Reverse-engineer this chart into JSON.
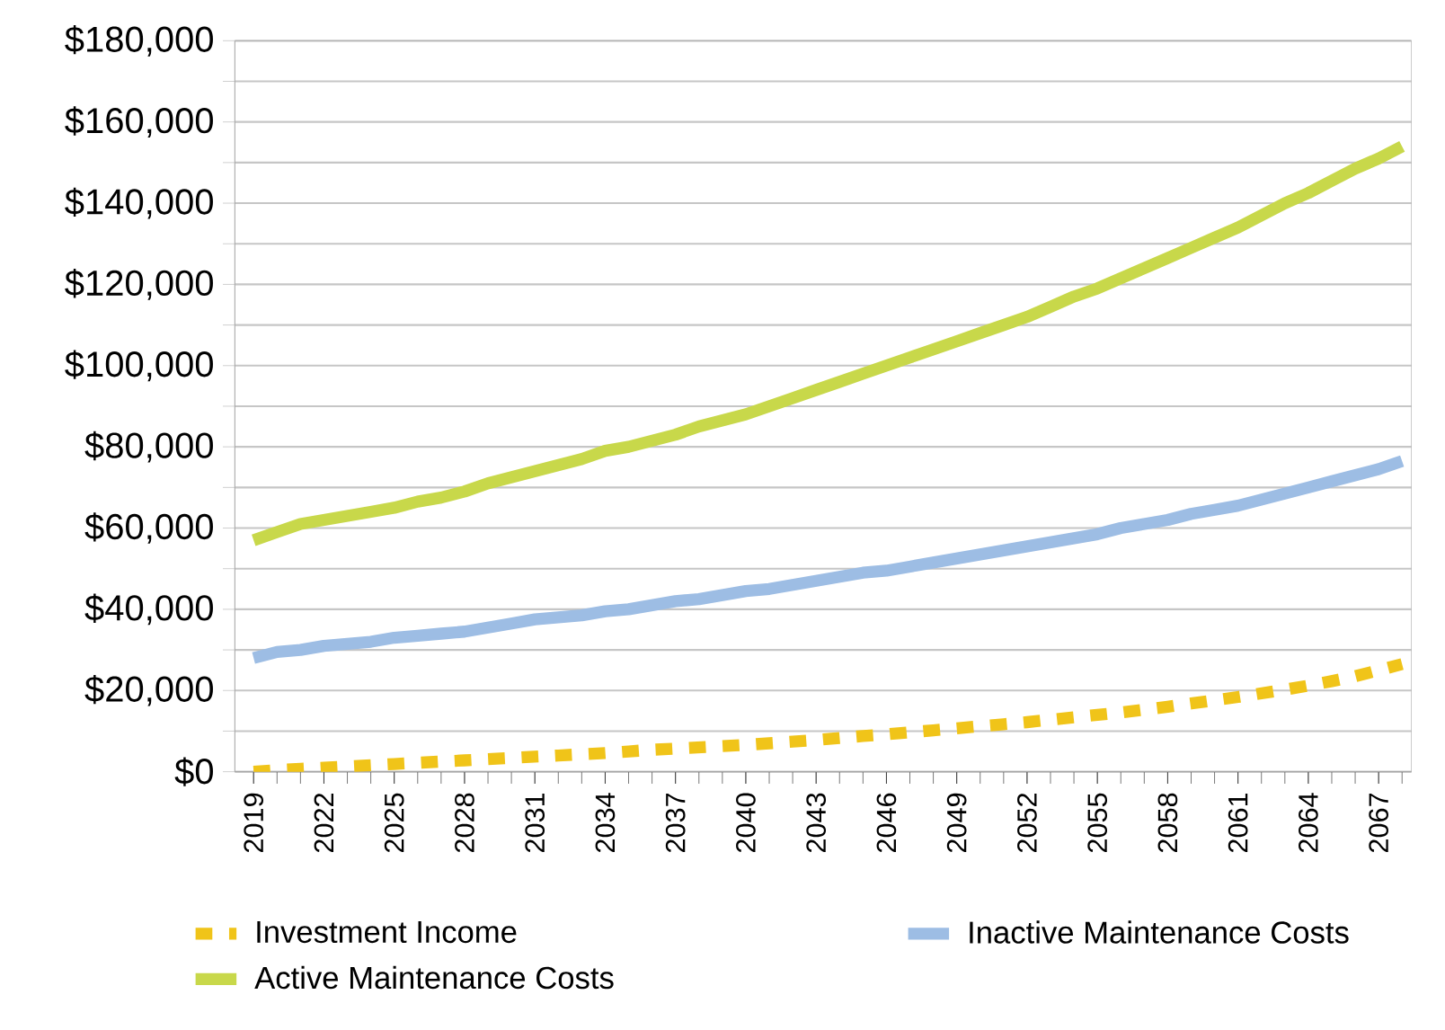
{
  "chart_data": {
    "type": "line",
    "categories": [
      "2019",
      null,
      null,
      "2022",
      null,
      null,
      "2025",
      null,
      null,
      "2028",
      null,
      null,
      "2031",
      null,
      null,
      "2034",
      null,
      null,
      "2037",
      null,
      null,
      "2040",
      null,
      null,
      "2043",
      null,
      null,
      "2046",
      null,
      null,
      "2049",
      null,
      null,
      "2052",
      null,
      null,
      "2055",
      null,
      null,
      "2058",
      null,
      null,
      "2061",
      null,
      null,
      "2064",
      null,
      null,
      "2067",
      null
    ],
    "series": [
      {
        "name": "Investment Income",
        "color": "#f0c419",
        "line_style": "dashed",
        "values": [
          0,
          400,
          700,
          1000,
          1300,
          1600,
          1900,
          2200,
          2500,
          2800,
          3100,
          3400,
          3700,
          4000,
          4300,
          4600,
          5000,
          5400,
          5700,
          6000,
          6300,
          6600,
          7000,
          7400,
          7800,
          8300,
          8800,
          9200,
          9700,
          10200,
          10700,
          11200,
          11700,
          12200,
          12800,
          13400,
          14000,
          14600,
          15300,
          16000,
          16800,
          17600,
          18400,
          19300,
          20200,
          21200,
          22300,
          23500,
          25000,
          26500
        ]
      },
      {
        "name": "Inactive Maintenance Costs",
        "color": "#9dbde4",
        "line_style": "solid",
        "values": [
          28000,
          29500,
          30000,
          31000,
          31500,
          32000,
          33000,
          33500,
          34000,
          34500,
          35500,
          36500,
          37500,
          38000,
          38500,
          39500,
          40000,
          41000,
          42000,
          42500,
          43500,
          44500,
          45000,
          46000,
          47000,
          48000,
          49000,
          49500,
          50500,
          51500,
          52500,
          53500,
          54500,
          55500,
          56500,
          57500,
          58500,
          60000,
          61000,
          62000,
          63500,
          64500,
          65500,
          67000,
          68500,
          70000,
          71500,
          73000,
          74500,
          76500
        ]
      },
      {
        "name": "Active Maintenance Costs",
        "color": "#c8d84a",
        "line_style": "solid",
        "values": [
          57000,
          59000,
          61000,
          62000,
          63000,
          64000,
          65000,
          66500,
          67500,
          69000,
          71000,
          72500,
          74000,
          75500,
          77000,
          79000,
          80000,
          81500,
          83000,
          85000,
          86500,
          88000,
          90000,
          92000,
          94000,
          96000,
          98000,
          100000,
          102000,
          104000,
          106000,
          108000,
          110000,
          112000,
          114500,
          117000,
          119000,
          121500,
          124000,
          126500,
          129000,
          131500,
          134000,
          137000,
          140000,
          142500,
          145500,
          148500,
          151000,
          154000
        ]
      }
    ],
    "ylim": [
      0,
      180000
    ],
    "yticks": [
      {
        "value": 0,
        "label": "$0"
      },
      {
        "value": 10000,
        "label": null
      },
      {
        "value": 20000,
        "label": "$20,000"
      },
      {
        "value": 30000,
        "label": null
      },
      {
        "value": 40000,
        "label": "$40,000"
      },
      {
        "value": 50000,
        "label": null
      },
      {
        "value": 60000,
        "label": "$60,000"
      },
      {
        "value": 70000,
        "label": null
      },
      {
        "value": 80000,
        "label": "$80,000"
      },
      {
        "value": 90000,
        "label": null
      },
      {
        "value": 100000,
        "label": "$100,000"
      },
      {
        "value": 110000,
        "label": null
      },
      {
        "value": 120000,
        "label": "$120,000"
      },
      {
        "value": 130000,
        "label": null
      },
      {
        "value": 140000,
        "label": "$140,000"
      },
      {
        "value": 150000,
        "label": null
      },
      {
        "value": 160000,
        "label": "$160,000"
      },
      {
        "value": 170000,
        "label": null
      },
      {
        "value": 180000,
        "label": "$180,000"
      }
    ],
    "grid": "y",
    "legend": "bottom",
    "marker": "none"
  }
}
